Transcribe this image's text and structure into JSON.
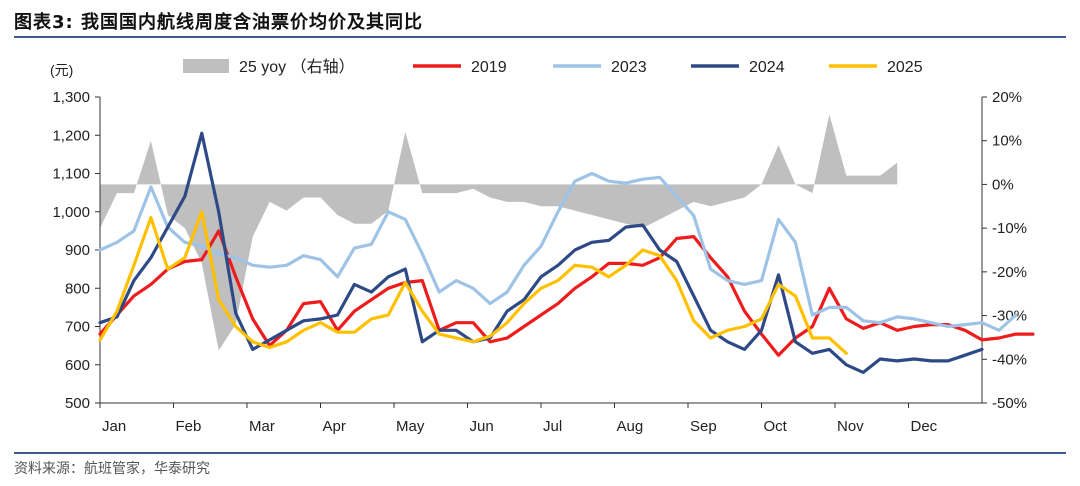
{
  "figure": {
    "title": "图表3:  我国国内航线周度含油票价均价及其同比",
    "source": "资料来源：航班管家，华泰研究"
  },
  "colors": {
    "2019": "#ee1c1c",
    "2023": "#9ec3e6",
    "2024": "#2e4a86",
    "2025": "#ffc000",
    "yoy": "#bfbfbf",
    "rule": "#3d5a86"
  },
  "chart_data": {
    "type": "line",
    "left_axis": {
      "unit_label": "(元)",
      "ylim": [
        500,
        1300
      ],
      "ticks": [
        500,
        600,
        700,
        800,
        900,
        1000,
        1100,
        1200,
        1300
      ],
      "tick_labels": [
        "500",
        "600",
        "700",
        "800",
        "900",
        "1,000",
        "1,100",
        "1,200",
        "1,300"
      ]
    },
    "right_axis": {
      "ylim": [
        -50,
        20
      ],
      "ticks": [
        -50,
        -40,
        -30,
        -20,
        -10,
        0,
        10,
        20
      ],
      "tick_labels": [
        "-50%",
        "-40%",
        "-30%",
        "-20%",
        "-10%",
        "0%",
        "10%",
        "20%"
      ]
    },
    "x_axis": {
      "categories": [
        "Jan",
        "Feb",
        "Mar",
        "Apr",
        "May",
        "Jun",
        "Jul",
        "Aug",
        "Sep",
        "Oct",
        "Nov",
        "Dec"
      ],
      "week_range": [
        1,
        53
      ]
    },
    "legend": {
      "position": "top",
      "entries": [
        {
          "key": "yoy",
          "label": "25 yoy （右轴）",
          "kind": "area"
        },
        {
          "key": "2019",
          "label": "2019",
          "kind": "line"
        },
        {
          "key": "2023",
          "label": "2023",
          "kind": "line"
        },
        {
          "key": "2024",
          "label": "2024",
          "kind": "line"
        },
        {
          "key": "2025",
          "label": "2025",
          "kind": "line"
        }
      ]
    },
    "series": [
      {
        "name": "2019",
        "axis": "left",
        "start_week": 1,
        "values": [
          680,
          730,
          780,
          810,
          850,
          870,
          875,
          950,
          830,
          720,
          650,
          690,
          760,
          765,
          690,
          740,
          770,
          800,
          815,
          820,
          690,
          710,
          710,
          660,
          670,
          700,
          730,
          760,
          800,
          830,
          865,
          865,
          860,
          880,
          930,
          935,
          880,
          830,
          740,
          680,
          625,
          670,
          700,
          800,
          720,
          695,
          710,
          690,
          700,
          705,
          705,
          690,
          665,
          670,
          680,
          680
        ]
      },
      {
        "name": "2023",
        "axis": "left",
        "start_week": 1,
        "values": [
          900,
          920,
          950,
          1065,
          960,
          920,
          910,
          890,
          880,
          860,
          855,
          860,
          885,
          875,
          830,
          905,
          915,
          1000,
          980,
          890,
          790,
          820,
          800,
          760,
          790,
          860,
          910,
          1000,
          1080,
          1100,
          1080,
          1075,
          1085,
          1090,
          1040,
          990,
          850,
          820,
          810,
          820,
          980,
          920,
          730,
          750,
          750,
          715,
          710,
          725,
          720,
          710,
          700,
          705,
          710,
          690,
          730
        ]
      },
      {
        "name": "2024",
        "axis": "left",
        "start_week": 1,
        "values": [
          710,
          725,
          820,
          880,
          960,
          1040,
          1205,
          1000,
          735,
          640,
          665,
          690,
          715,
          720,
          730,
          810,
          790,
          830,
          850,
          660,
          690,
          690,
          660,
          670,
          740,
          770,
          830,
          860,
          900,
          920,
          925,
          960,
          965,
          900,
          870,
          780,
          690,
          660,
          640,
          690,
          835,
          660,
          630,
          640,
          600,
          580,
          615,
          610,
          615,
          610,
          610,
          625,
          640
        ]
      },
      {
        "name": "2025",
        "axis": "left",
        "start_week": 1,
        "values": [
          665,
          740,
          860,
          985,
          850,
          880,
          1000,
          770,
          700,
          660,
          645,
          660,
          690,
          710,
          685,
          685,
          720,
          730,
          815,
          740,
          680,
          670,
          660,
          675,
          710,
          760,
          800,
          820,
          860,
          855,
          830,
          860,
          900,
          885,
          820,
          715,
          670,
          690,
          700,
          720,
          810,
          780,
          670,
          670,
          630
        ]
      },
      {
        "name": "25 yoy",
        "axis": "right",
        "start_week": 1,
        "kind": "area",
        "values": [
          -10,
          -2,
          -2,
          10,
          -7,
          -10,
          -18,
          -38,
          -32,
          -12,
          -4,
          -6,
          -3,
          -3,
          -7,
          -9,
          -9,
          -6,
          12,
          -2,
          -2,
          -2,
          -1,
          -3,
          -4,
          -4,
          -5,
          -5,
          -6,
          -7,
          -8,
          -9,
          -10,
          -8,
          -6,
          -4,
          -5,
          -4,
          -3,
          0,
          9,
          0,
          -2,
          16,
          2,
          2,
          2,
          5
        ]
      }
    ]
  }
}
